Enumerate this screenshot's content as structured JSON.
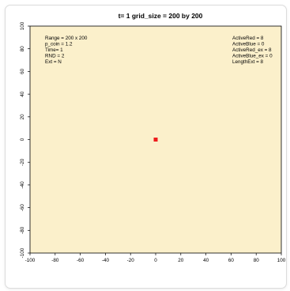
{
  "chart_data": {
    "type": "scatter",
    "title": "t= 1 grid_size = 200 by 200",
    "xlabel": "",
    "ylabel": "",
    "xlim": [
      -100,
      100
    ],
    "ylim": [
      -100,
      100
    ],
    "x_ticks": [
      "-100",
      "-80",
      "-60",
      "-40",
      "-20",
      "0",
      "20",
      "40",
      "60",
      "80",
      "100"
    ],
    "y_ticks": [
      "-100",
      "-80",
      "-60",
      "-40",
      "-20",
      "0",
      "20",
      "40",
      "60",
      "80",
      "100"
    ],
    "grid": false,
    "background_color": "#fbf0cb",
    "series": [
      {
        "color": "#ee1c1c",
        "points": [
          [
            0,
            0
          ]
        ]
      }
    ],
    "annotations_left": [
      "Range = 200 x 200",
      "p_coin = 1.2",
      "Time= 1",
      "RND = 2",
      "Ext = N"
    ],
    "annotations_right": [
      "ActiveRed = 8",
      "ActiveBlue = 0",
      "ActiveRed_ex = 8",
      "ActiveBlue_ex = 0",
      "LengthExt = 8"
    ]
  }
}
